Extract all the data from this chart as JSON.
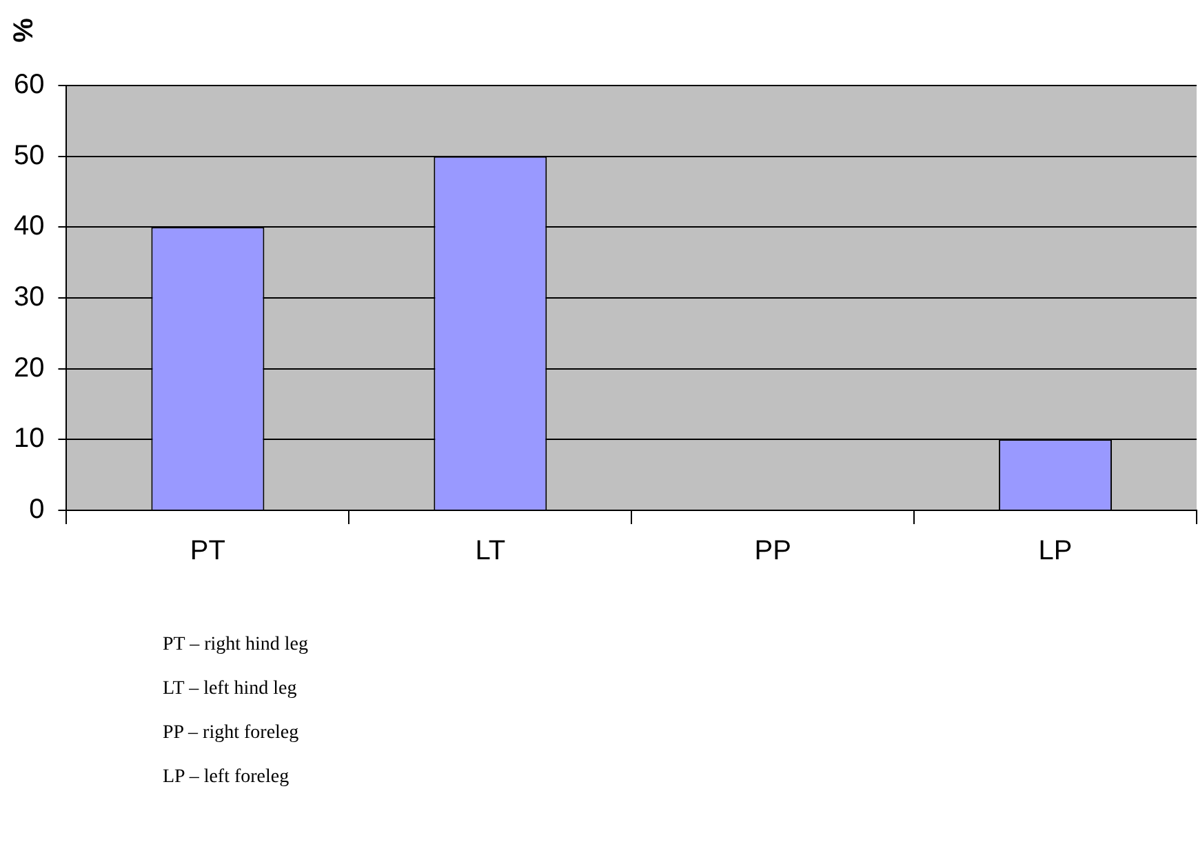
{
  "chart_data": {
    "type": "bar",
    "ylabel": "%",
    "categories": [
      "PT",
      "LT",
      "PP",
      "LP"
    ],
    "values": [
      40,
      50,
      0,
      10
    ],
    "color": "#9999ff",
    "ylim": [
      0,
      60
    ],
    "yticks": [
      0,
      10,
      20,
      30,
      40,
      50,
      60
    ],
    "grid": "y",
    "legend": false,
    "annotations": [
      "PT – right hind leg",
      "LT – left hind leg",
      "PP – right foreleg",
      "LP – left foreleg"
    ]
  }
}
